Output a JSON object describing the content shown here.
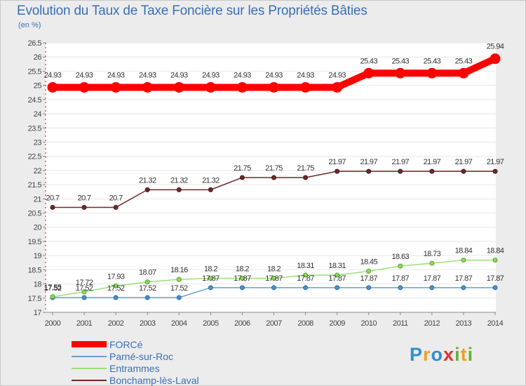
{
  "chart_data": {
    "type": "line",
    "title": "Evolution du Taux de Taxe Foncière sur les Propriétés Bâties",
    "subtitle": "(en %)",
    "xlabel": "",
    "ylabel": "",
    "x": [
      "2000",
      "2001",
      "2002",
      "2003",
      "2004",
      "2005",
      "2006",
      "2007",
      "2008",
      "2009",
      "2010",
      "2011",
      "2012",
      "2013",
      "2014"
    ],
    "ylim": [
      17,
      26.5
    ],
    "yticks": [
      "17",
      "17.5",
      "18",
      "18.5",
      "19",
      "19.5",
      "20",
      "20.5",
      "21",
      "21.5",
      "22",
      "22.5",
      "23",
      "23.5",
      "24",
      "24.5",
      "25",
      "25.5",
      "26",
      "26.5"
    ],
    "series": [
      {
        "name": "FORCé",
        "color": "#ff0000",
        "values": [
          24.93,
          24.93,
          24.93,
          24.93,
          24.93,
          24.93,
          24.93,
          24.93,
          24.93,
          24.93,
          25.43,
          25.43,
          25.43,
          25.43,
          25.94
        ],
        "labels": [
          "24.93",
          "24.93",
          "24.93",
          "24.93",
          "24.93",
          "24.93",
          "24.93",
          "24.93",
          "24.93",
          "24.93",
          "25.43",
          "25.43",
          "25.43",
          "25.43",
          "25.94"
        ]
      },
      {
        "name": "Parné-sur-Roc",
        "color": "#6a9fd0",
        "values": [
          17.52,
          17.52,
          17.52,
          17.52,
          17.52,
          17.87,
          17.87,
          17.87,
          17.87,
          17.87,
          17.87,
          17.87,
          17.87,
          17.87,
          17.87
        ],
        "labels": [
          "17.52",
          "17.52",
          "17.52",
          "17.52",
          "17.52",
          "17.87",
          "17.87",
          "17.87",
          "17.87",
          "17.87",
          "17.87",
          "17.87",
          "17.87",
          "17.87",
          "17.87"
        ]
      },
      {
        "name": "Entrammes",
        "color": "#99e07a",
        "values": [
          17.55,
          17.72,
          17.93,
          18.07,
          18.16,
          18.2,
          18.2,
          18.2,
          18.31,
          18.31,
          18.45,
          18.63,
          18.73,
          18.84,
          18.84
        ],
        "labels": [
          "17.55",
          "17.72",
          "17.93",
          "18.07",
          "18.16",
          "18.2",
          "18.2",
          "18.2",
          "18.31",
          "18.31",
          "18.45",
          "18.63",
          "18.73",
          "18.84",
          "18.84"
        ]
      },
      {
        "name": "Bonchamp-lès-Laval",
        "color": "#6e2a2a",
        "values": [
          20.7,
          20.7,
          20.7,
          21.32,
          21.32,
          21.32,
          21.75,
          21.75,
          21.75,
          21.97,
          21.97,
          21.97,
          21.97,
          21.97,
          21.97
        ],
        "labels": [
          "20.7",
          "20.7",
          "20.7",
          "21.32",
          "21.32",
          "21.32",
          "21.75",
          "21.75",
          "21.75",
          "21.97",
          "21.97",
          "21.97",
          "21.97",
          "21.97",
          "21.97"
        ]
      }
    ],
    "legend": [
      "FORCé",
      "Parné-sur-Roc",
      "Entrammes",
      "Bonchamp-lès-Laval"
    ],
    "legend_position": "bottom-left"
  },
  "logo": {
    "p": "P",
    "r": "r",
    "o": "o",
    "x": "x",
    "i": "i",
    "t": "t",
    "i2": "i"
  }
}
